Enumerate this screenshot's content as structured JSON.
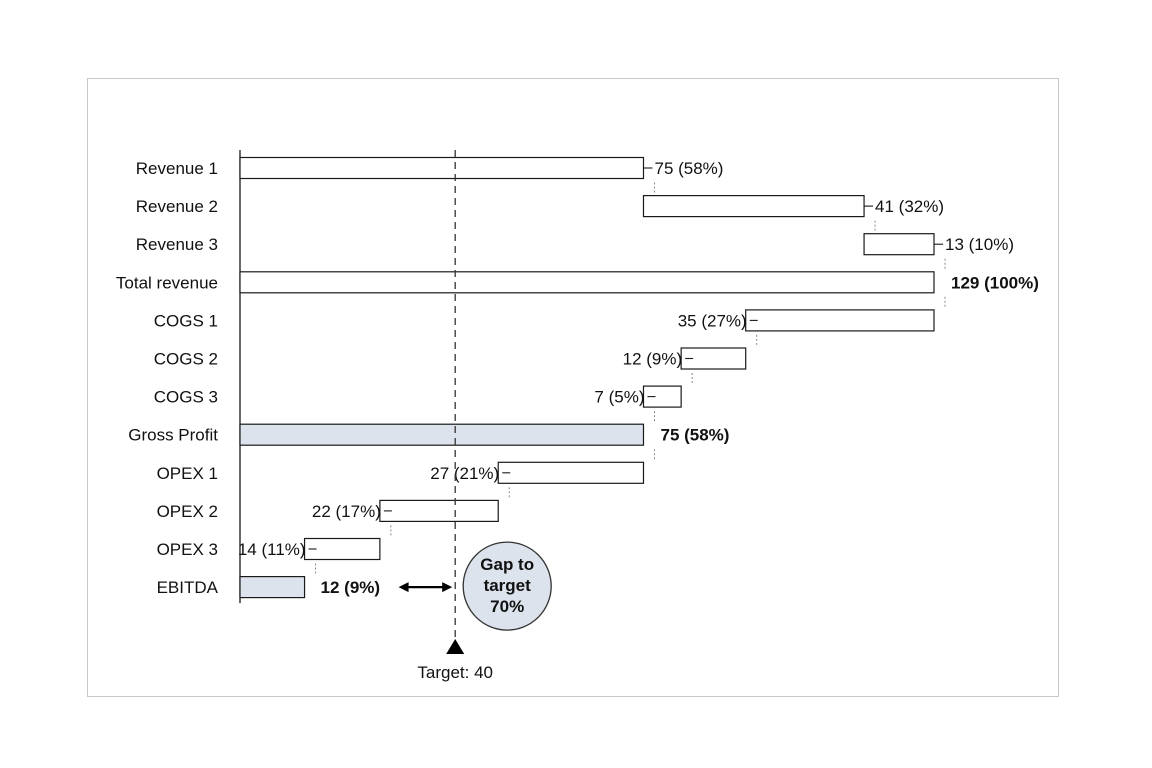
{
  "chart_data": {
    "type": "bar",
    "subtype": "waterfall",
    "orientation": "horizontal",
    "categories": [
      "Revenue 1",
      "Revenue 2",
      "Revenue 3",
      "Total revenue",
      "COGS 1",
      "COGS 2",
      "COGS 3",
      "Gross Profit",
      "OPEX 1",
      "OPEX 2",
      "OPEX 3",
      "EBITDA"
    ],
    "values": [
      75,
      41,
      13,
      129,
      35,
      12,
      7,
      75,
      27,
      22,
      14,
      12
    ],
    "kinds": [
      "increase",
      "increase",
      "increase",
      "total",
      "decrease",
      "decrease",
      "decrease",
      "subtotal",
      "decrease",
      "decrease",
      "decrease",
      "subtotal"
    ],
    "value_labels": [
      "75 (58%)",
      "41 (32%)",
      "13 (10%)",
      "129 (100%)",
      "35 (27%)",
      "12 (9%)",
      "7 (5%)",
      "75 (58%)",
      "27 (21%)",
      "22 (17%)",
      "14 (11%)",
      "12 (9%)"
    ],
    "target": {
      "value": 40,
      "label": "Target: 40"
    },
    "gap_callout": "Gap to\ntarget\n70%",
    "xlim": [
      0,
      129
    ],
    "colors": {
      "outline": "#1a1a1a",
      "bar_fill": "#ffffff",
      "subtotal_fill": "#dde3ec",
      "callout_fill": "#dde3ec",
      "frame": "#c8c8c8"
    }
  }
}
